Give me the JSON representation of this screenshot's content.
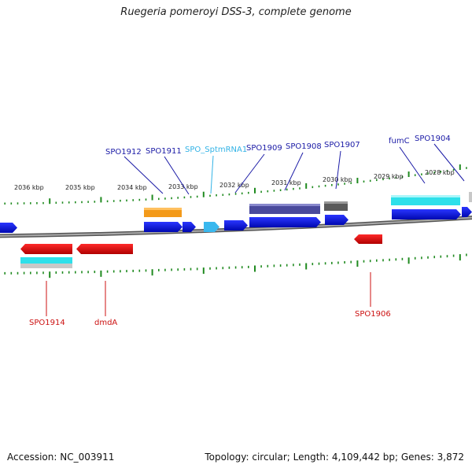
{
  "title": "Ruegeria pomeroyi DSS-3, complete genome",
  "footer": {
    "accession": "Accession: NC_003911",
    "summary": "Topology: circular; Length: 4,109,442 bp; Genes: 3,872"
  },
  "scale_labels": [
    "2036 kbp",
    "2035 kbp",
    "2034 kbp",
    "2033 kbp",
    "2032 kbp",
    "2031 kbp",
    "2030 kbp",
    "2029 kbp",
    "2028 kbp"
  ],
  "top_labels": [
    {
      "text": "SPO1912",
      "color": "#1a1aa6"
    },
    {
      "text": "SPO1911",
      "color": "#1a1aa6"
    },
    {
      "text": "SPO_SptmRNA1",
      "color": "#33b3e6"
    },
    {
      "text": "SPO1909",
      "color": "#1a1aa6"
    },
    {
      "text": "SPO1908",
      "color": "#1a1aa6"
    },
    {
      "text": "SPO1907",
      "color": "#1a1aa6"
    },
    {
      "text": "fumC",
      "color": "#1a1aa6"
    },
    {
      "text": "SPO1904",
      "color": "#1a1aa6"
    }
  ],
  "bottom_labels": [
    {
      "text": "SPO1914",
      "color": "#cc1111"
    },
    {
      "text": "dmdA",
      "color": "#cc1111"
    },
    {
      "text": "SPO1906",
      "color": "#cc1111"
    }
  ],
  "colors": {
    "forward_cds": "#0a12e0",
    "reverse_cds": "#e01010",
    "trna": "#3ab8ee",
    "gene_orange": "#f39a1a",
    "gene_slate": "#4a4a9c",
    "gene_gray": "#5a5a5a",
    "gene_cyan": "#2ee0ea",
    "gene_lightgray": "#c8c8c8",
    "tick_green": "#1f8a1f",
    "backbone": "#777777"
  }
}
